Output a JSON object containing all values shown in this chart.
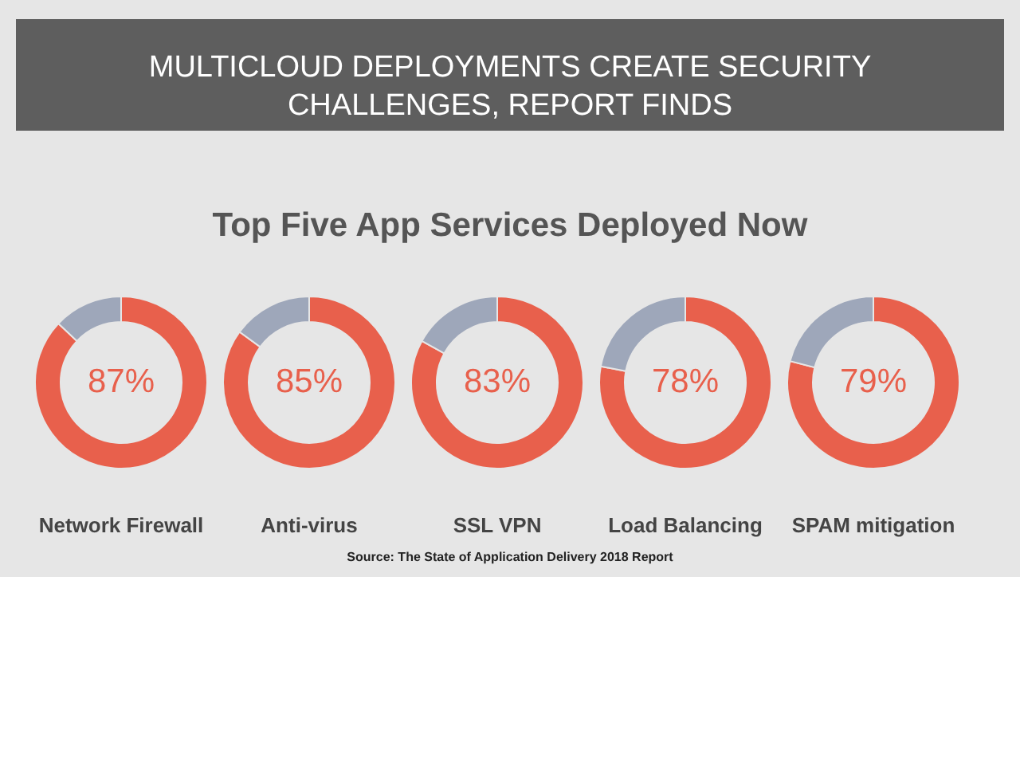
{
  "chart_data": [
    {
      "type": "other",
      "title": "MULTICLOUD DEPLOYMENTS CREATE SECURITY CHALLENGES, REPORT FINDS",
      "subtitle": "Top Five App Services Deployed Now",
      "annotations": [
        "Source: The State of Application Delivery 2018 Report"
      ]
    },
    {
      "type": "donut",
      "xlabel": "Network Firewall",
      "categories": [
        null,
        null
      ],
      "values": [
        87,
        13
      ],
      "colors": [
        "#e8604c",
        "#9ea7ba"
      ],
      "value_labels": [
        "87%",
        null
      ]
    },
    {
      "type": "donut",
      "xlabel": "Anti-virus",
      "categories": [
        null,
        null
      ],
      "values": [
        85,
        15
      ],
      "colors": [
        "#e8604c",
        "#9ea7ba"
      ],
      "value_labels": [
        "85%",
        null
      ]
    },
    {
      "type": "donut",
      "xlabel": "SSL VPN",
      "categories": [
        null,
        null
      ],
      "values": [
        83,
        17
      ],
      "colors": [
        "#e8604c",
        "#9ea7ba"
      ],
      "value_labels": [
        "83%",
        null
      ]
    },
    {
      "type": "donut",
      "xlabel": "Load Balancing",
      "categories": [
        null,
        null
      ],
      "values": [
        78,
        22
      ],
      "colors": [
        "#e8604c",
        "#9ea7ba"
      ],
      "value_labels": [
        "78%",
        null
      ]
    },
    {
      "type": "donut",
      "xlabel": "SPAM mitigation",
      "categories": [
        null,
        null
      ],
      "values": [
        79,
        21
      ],
      "colors": [
        "#e8604c",
        "#9ea7ba"
      ],
      "value_labels": [
        "79%",
        null
      ]
    }
  ]
}
